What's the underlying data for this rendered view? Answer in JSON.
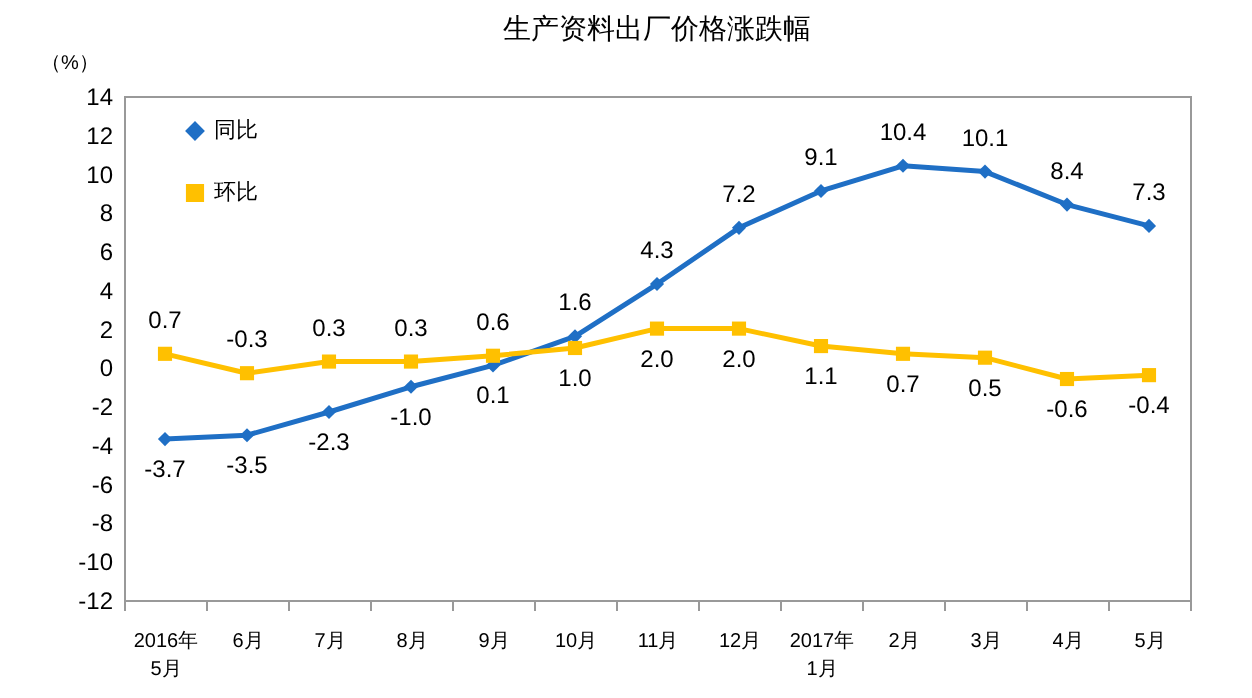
{
  "chart_data": {
    "type": "line",
    "title": "生产资料出厂价格涨跌幅",
    "ylabel": "（%）",
    "categories": [
      "2016年\n5月",
      "6月",
      "7月",
      "8月",
      "9月",
      "10月",
      "11月",
      "12月",
      "2017年\n1月",
      "2月",
      "3月",
      "4月",
      "5月"
    ],
    "series": [
      {
        "name": "同比",
        "color": "#1f6fc5",
        "marker": "diamond",
        "values": [
          -3.7,
          -3.5,
          -2.3,
          -1.0,
          0.1,
          1.6,
          4.3,
          7.2,
          9.1,
          10.4,
          10.1,
          8.4,
          7.3
        ],
        "value_labels": [
          "-3.7",
          "-3.5",
          "-2.3",
          "-1.0",
          "0.1",
          "1.6",
          "4.3",
          "7.2",
          "9.1",
          "10.4",
          "10.1",
          "8.4",
          "7.3"
        ]
      },
      {
        "name": "环比",
        "color": "#ffc000",
        "marker": "square",
        "values": [
          0.7,
          -0.3,
          0.3,
          0.3,
          0.6,
          1.0,
          2.0,
          2.0,
          1.1,
          0.7,
          0.5,
          -0.6,
          -0.4
        ],
        "value_labels": [
          "0.7",
          "-0.3",
          "0.3",
          "0.3",
          "0.6",
          "1.0",
          "2.0",
          "2.0",
          "1.1",
          "0.7",
          "0.5",
          "-0.6",
          "-0.4"
        ]
      }
    ],
    "ylim": [
      -12,
      14
    ],
    "yticks": [
      -12,
      -10,
      -8,
      -6,
      -4,
      -2,
      0,
      2,
      4,
      6,
      8,
      10,
      12,
      14
    ],
    "legend": "top left",
    "grid": false,
    "data_labels": true
  }
}
